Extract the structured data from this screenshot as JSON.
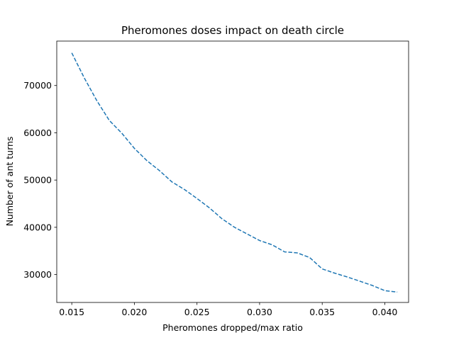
{
  "chart_data": {
    "type": "line",
    "title": "Pheromones doses impact on death circle",
    "xlabel": "Pheromones dropped/max ratio",
    "ylabel": "Number of ant turns",
    "xlim": [
      0.0138,
      0.0419
    ],
    "ylim": [
      24100,
      79400
    ],
    "grid": false,
    "xticks": [
      0.015,
      0.02,
      0.025,
      0.03,
      0.035,
      0.04
    ],
    "xtick_labels": [
      "0.015",
      "0.020",
      "0.025",
      "0.030",
      "0.035",
      "0.040"
    ],
    "yticks": [
      30000,
      40000,
      50000,
      60000,
      70000
    ],
    "ytick_labels": [
      "30000",
      "40000",
      "50000",
      "60000",
      "70000"
    ],
    "series": [
      {
        "name": "",
        "color": "#1f77b4",
        "linestyle": "dashed",
        "x": [
          0.015,
          0.016,
          0.017,
          0.018,
          0.019,
          0.02,
          0.021,
          0.022,
          0.023,
          0.024,
          0.025,
          0.026,
          0.027,
          0.028,
          0.029,
          0.03,
          0.031,
          0.032,
          0.033,
          0.034,
          0.035,
          0.036,
          0.037,
          0.038,
          0.039,
          0.04,
          0.041
        ],
        "y": [
          76900,
          71600,
          66800,
          62600,
          59900,
          56700,
          54100,
          52000,
          49600,
          48000,
          46100,
          44100,
          41800,
          40000,
          38600,
          37200,
          36300,
          34800,
          34600,
          33600,
          31200,
          30300,
          29500,
          28600,
          27700,
          26600,
          26300
        ]
      }
    ]
  }
}
